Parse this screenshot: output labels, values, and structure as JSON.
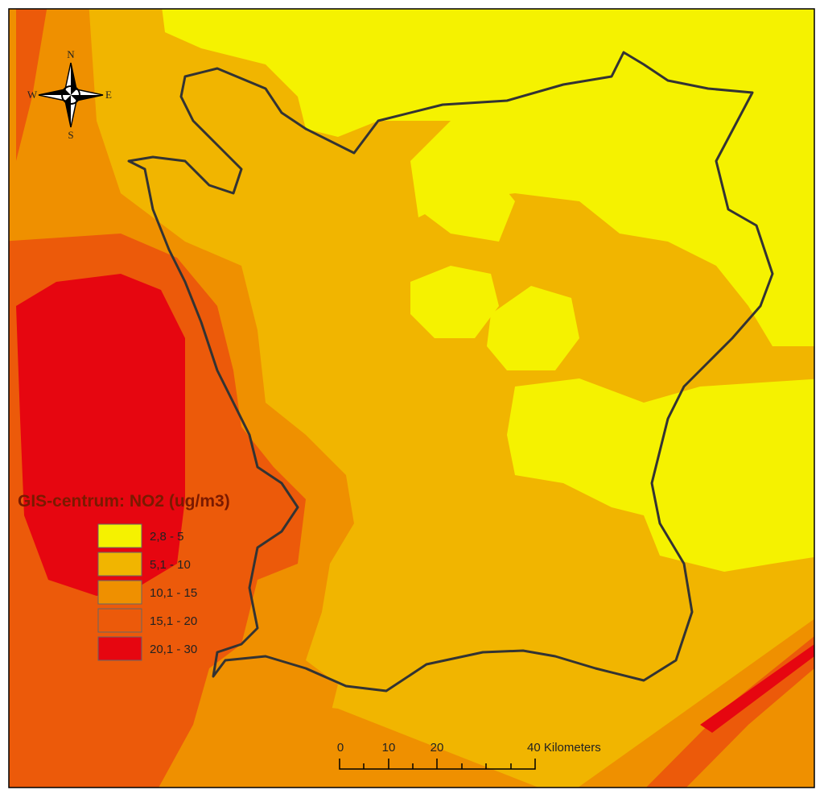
{
  "map": {
    "legend": {
      "title": "GIS-centrum: NO2 (ug/m3)",
      "items": [
        {
          "label": "2,8 - 5",
          "color": "#f5f200"
        },
        {
          "label": "5,1 - 10",
          "color": "#f1b500"
        },
        {
          "label": "10,1 - 15",
          "color": "#ef9000"
        },
        {
          "label": "15,1 - 20",
          "color": "#ec5a0a"
        },
        {
          "label": "20,1 - 30",
          "color": "#e60610"
        }
      ]
    },
    "compass": {
      "north": "N",
      "south": "S",
      "west": "W",
      "east": "E"
    },
    "scale_bar": {
      "labels": [
        "0",
        "10",
        "20",
        "40 Kilometers"
      ]
    }
  }
}
